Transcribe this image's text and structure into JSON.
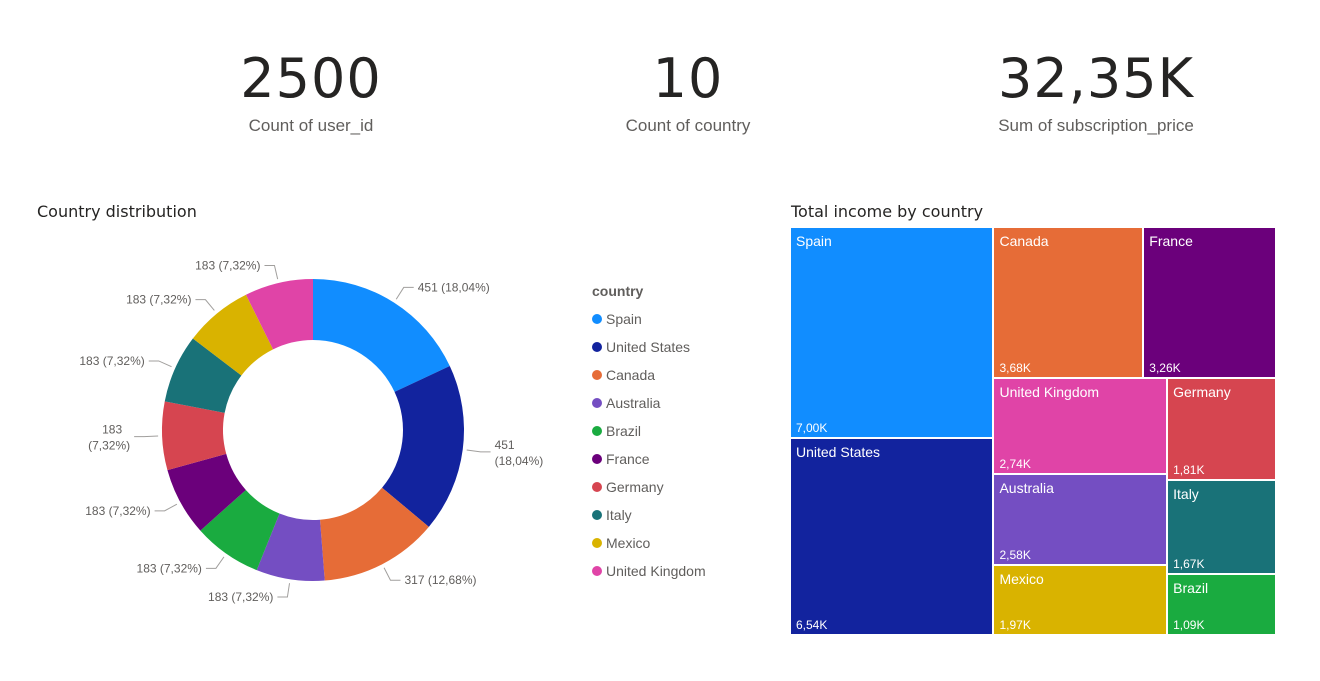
{
  "kpis": [
    {
      "value": "2500",
      "label": "Count of user_id"
    },
    {
      "value": "10",
      "label": "Count of country"
    },
    {
      "value": "32,35K",
      "label": "Sum of subscription_price"
    }
  ],
  "donut": {
    "title": "Country distribution",
    "legend_title": "country"
  },
  "treemap": {
    "title": "Total income by country"
  },
  "colors": {
    "Spain": "#118DFF",
    "United States": "#12239E",
    "Canada": "#E66C37",
    "Australia": "#744EC2",
    "Brazil": "#1AAB40",
    "France": "#6B007B",
    "Germany": "#D64550",
    "Italy": "#197278",
    "Mexico": "#D9B300",
    "United Kingdom": "#E044A7"
  },
  "chart_data": [
    {
      "type": "pie",
      "title": "Country distribution",
      "legend_title": "country",
      "categories": [
        "Spain",
        "United States",
        "Canada",
        "Australia",
        "Brazil",
        "France",
        "Germany",
        "Italy",
        "Mexico",
        "United Kingdom"
      ],
      "values": [
        451,
        451,
        317,
        183,
        183,
        183,
        183,
        183,
        183,
        183
      ],
      "labels": [
        "451 (18,04%)",
        "451 (18,04%)",
        "317 (12,68%)",
        "183 (7,32%)",
        "183 (7,32%)",
        "183 (7,32%)",
        "183 (7,32%)",
        "183 (7,32%)",
        "183 (7,32%)",
        "183 (7,32%)"
      ],
      "legend_position": "right"
    },
    {
      "type": "treemap",
      "title": "Total income by country",
      "categories": [
        "Spain",
        "United States",
        "Canada",
        "France",
        "United Kingdom",
        "Germany",
        "Australia",
        "Italy",
        "Mexico",
        "Brazil"
      ],
      "values": [
        7000,
        6540,
        3680,
        3260,
        2740,
        1810,
        2580,
        1670,
        1970,
        1090
      ],
      "labels": [
        "7,00K",
        "6,54K",
        "3,68K",
        "3,26K",
        "2,74K",
        "1,81K",
        "2,58K",
        "1,67K",
        "1,97K",
        "1,09K"
      ]
    }
  ]
}
